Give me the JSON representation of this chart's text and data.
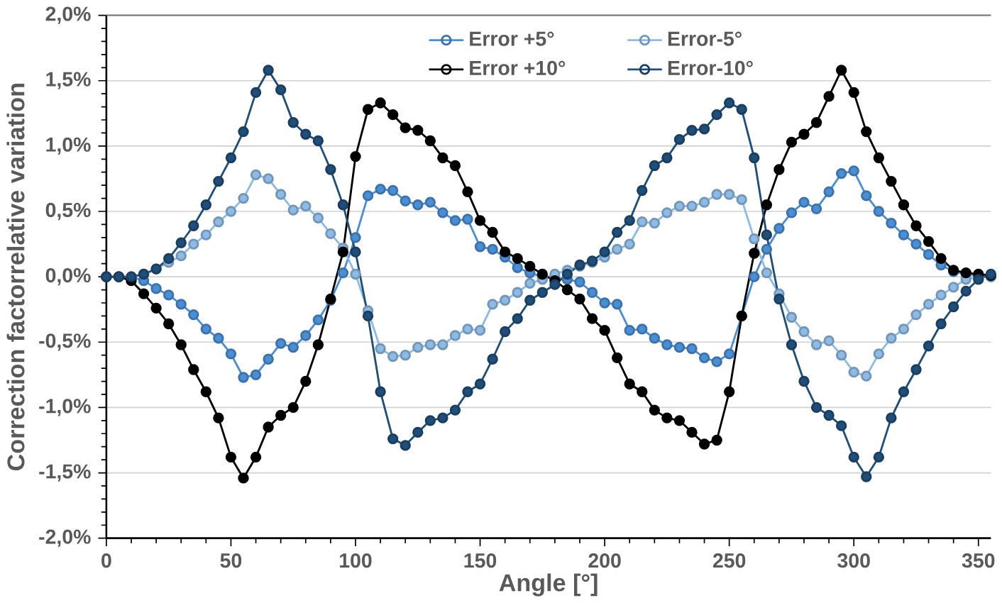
{
  "chart_data": {
    "type": "line",
    "xlabel": "Angle [°]",
    "ylabel": "Correction factorrelative variation",
    "x": [
      0,
      5,
      10,
      15,
      20,
      25,
      30,
      35,
      40,
      45,
      50,
      55,
      60,
      65,
      70,
      75,
      80,
      85,
      90,
      95,
      100,
      105,
      110,
      115,
      120,
      125,
      130,
      135,
      140,
      145,
      150,
      155,
      160,
      165,
      170,
      175,
      180,
      185,
      190,
      195,
      200,
      205,
      210,
      215,
      220,
      225,
      230,
      235,
      240,
      245,
      250,
      255,
      260,
      265,
      270,
      275,
      280,
      285,
      290,
      295,
      300,
      305,
      310,
      315,
      320,
      325,
      330,
      335,
      340,
      345,
      350,
      355
    ],
    "xlim": [
      0,
      355
    ],
    "xticks": [
      0,
      50,
      100,
      150,
      200,
      250,
      300,
      350
    ],
    "ylim": [
      -2,
      2
    ],
    "yticks": [
      {
        "value": -2,
        "label": "-2,0%"
      },
      {
        "value": -1.5,
        "label": "-1,5%"
      },
      {
        "value": -1,
        "label": "-1,0%"
      },
      {
        "value": -0.5,
        "label": "-0,5%"
      },
      {
        "value": 0,
        "label": "0,0%"
      },
      {
        "value": 0.5,
        "label": "0,5%"
      },
      {
        "value": 1,
        "label": "1,0%"
      },
      {
        "value": 1.5,
        "label": "1,5%"
      },
      {
        "value": 2,
        "label": "2,0%"
      }
    ],
    "grid": "y",
    "legend": "top",
    "marker": "circle",
    "line_style": "solid",
    "series": [
      {
        "name": "Error +5°",
        "color": "#4a8fd6",
        "values": [
          0,
          0,
          0,
          -0.03,
          -0.09,
          -0.14,
          -0.21,
          -0.29,
          -0.4,
          -0.47,
          -0.59,
          -0.77,
          -0.75,
          -0.63,
          -0.51,
          -0.54,
          -0.45,
          -0.33,
          -0.18,
          0.03,
          0.3,
          0.62,
          0.67,
          0.66,
          0.58,
          0.55,
          0.57,
          0.49,
          0.43,
          0.44,
          0.23,
          0.21,
          0.15,
          0.07,
          0.03,
          0,
          -0.01,
          -0.02,
          -0.04,
          -0.12,
          -0.2,
          -0.21,
          -0.41,
          -0.4,
          -0.47,
          -0.52,
          -0.54,
          -0.55,
          -0.62,
          -0.65,
          -0.59,
          -0.3,
          0,
          0.21,
          0.37,
          0.49,
          0.57,
          0.52,
          0.65,
          0.79,
          0.81,
          0.62,
          0.5,
          0.41,
          0.32,
          0.25,
          0.17,
          0.09,
          0.04,
          0.02,
          0.01,
          0
        ]
      },
      {
        "name": "Error-5°",
        "color": "#8dbbe6",
        "values": [
          0,
          0,
          0,
          0.02,
          0.06,
          0.11,
          0.16,
          0.25,
          0.32,
          0.42,
          0.5,
          0.6,
          0.78,
          0.75,
          0.63,
          0.51,
          0.54,
          0.45,
          0.33,
          0.22,
          0.02,
          -0.26,
          -0.55,
          -0.61,
          -0.6,
          -0.54,
          -0.52,
          -0.52,
          -0.45,
          -0.4,
          -0.41,
          -0.21,
          -0.18,
          -0.12,
          -0.05,
          -0.02,
          0.02,
          0.05,
          0.08,
          0.11,
          0.15,
          0.21,
          0.25,
          0.42,
          0.41,
          0.49,
          0.54,
          0.54,
          0.57,
          0.63,
          0.63,
          0.59,
          0.29,
          0.03,
          -0.13,
          -0.31,
          -0.42,
          -0.52,
          -0.49,
          -0.6,
          -0.73,
          -0.76,
          -0.59,
          -0.47,
          -0.4,
          -0.29,
          -0.21,
          -0.14,
          -0.08,
          -0.02,
          0,
          0
        ]
      },
      {
        "name": "Error +10°",
        "color": "#000000",
        "values": [
          0,
          0,
          -0.03,
          -0.13,
          -0.24,
          -0.36,
          -0.52,
          -0.71,
          -0.88,
          -1.08,
          -1.38,
          -1.54,
          -1.38,
          -1.15,
          -1.06,
          -1,
          -0.8,
          -0.52,
          -0.17,
          0.19,
          0.92,
          1.28,
          1.33,
          1.24,
          1.14,
          1.12,
          1.04,
          0.91,
          0.85,
          0.65,
          0.43,
          0.34,
          0.19,
          0.14,
          0.08,
          0.02,
          -0.03,
          -0.1,
          -0.17,
          -0.32,
          -0.41,
          -0.62,
          -0.82,
          -0.88,
          -1.02,
          -1.08,
          -1.1,
          -1.19,
          -1.28,
          -1.25,
          -0.88,
          -0.3,
          0.18,
          0.55,
          0.82,
          1.03,
          1.09,
          1.18,
          1.38,
          1.58,
          1.41,
          1.11,
          0.91,
          0.73,
          0.55,
          0.39,
          0.27,
          0.14,
          0.05,
          0.03,
          0.02,
          0.01
        ]
      },
      {
        "name": "Error-10°",
        "color": "#1f4e79",
        "values": [
          0,
          0,
          0,
          0.02,
          0.06,
          0.14,
          0.26,
          0.39,
          0.55,
          0.73,
          0.91,
          1.11,
          1.41,
          1.58,
          1.43,
          1.18,
          1.09,
          1.04,
          0.82,
          0.55,
          0.19,
          -0.3,
          -0.88,
          -1.24,
          -1.29,
          -1.19,
          -1.1,
          -1.08,
          -1.02,
          -0.88,
          -0.82,
          -0.63,
          -0.42,
          -0.32,
          -0.18,
          -0.12,
          -0.06,
          0.02,
          0.09,
          0.12,
          0.19,
          0.34,
          0.43,
          0.66,
          0.85,
          0.91,
          1.05,
          1.12,
          1.13,
          1.24,
          1.33,
          1.28,
          0.91,
          0.32,
          -0.17,
          -0.52,
          -0.8,
          -1,
          -1.06,
          -1.14,
          -1.38,
          -1.53,
          -1.38,
          -1.08,
          -0.88,
          -0.71,
          -0.53,
          -0.36,
          -0.23,
          -0.11,
          -0.02,
          0.02
        ]
      }
    ]
  }
}
